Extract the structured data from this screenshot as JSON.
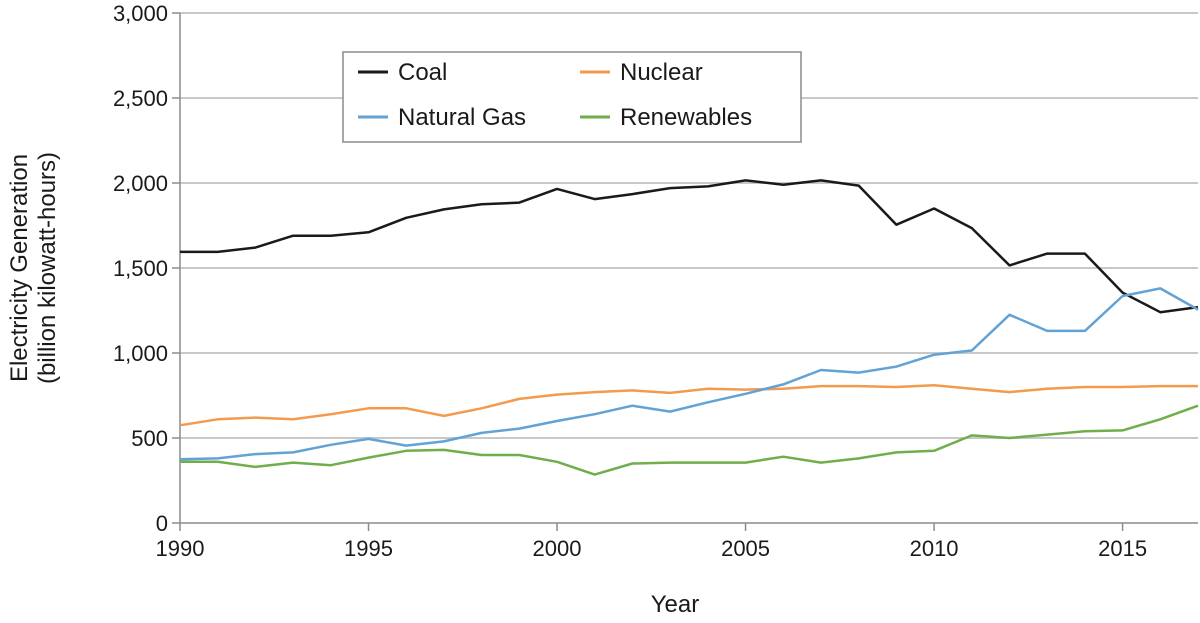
{
  "chart_data": {
    "type": "line",
    "title": "",
    "xlabel": "Year",
    "ylabel_lines": [
      "Electricity Generation",
      "(billion kilowatt-hours)"
    ],
    "xlim": [
      1990,
      2017
    ],
    "ylim": [
      0,
      3000
    ],
    "x_ticks": [
      1990,
      1995,
      2000,
      2005,
      2010,
      2015
    ],
    "x_tick_labels": [
      "1990",
      "1995",
      "2000",
      "2005",
      "2010",
      "2015"
    ],
    "y_ticks": [
      0,
      500,
      1000,
      1500,
      2000,
      2500,
      3000
    ],
    "y_tick_labels": [
      "0",
      "500",
      "1,000",
      "1,500",
      "2,000",
      "2,500",
      "3,000"
    ],
    "grid": "horizontal",
    "legend_position": "top-left inside",
    "x": [
      1990,
      1991,
      1992,
      1993,
      1994,
      1995,
      1996,
      1997,
      1998,
      1999,
      2000,
      2001,
      2002,
      2003,
      2004,
      2005,
      2006,
      2007,
      2008,
      2009,
      2010,
      2011,
      2012,
      2013,
      2014,
      2015,
      2016,
      2017
    ],
    "series": [
      {
        "name": "Coal",
        "color": "#1a1a1a",
        "values": [
          1595,
          1595,
          1620,
          1690,
          1690,
          1710,
          1795,
          1845,
          1875,
          1885,
          1965,
          1905,
          1935,
          1970,
          1980,
          2015,
          1990,
          2015,
          1985,
          1755,
          1850,
          1735,
          1515,
          1585,
          1585,
          1355,
          1240,
          1270
        ]
      },
      {
        "name": "Nuclear",
        "color": "#f39a4e",
        "values": [
          575,
          610,
          620,
          610,
          640,
          675,
          675,
          630,
          675,
          730,
          755,
          770,
          780,
          765,
          790,
          785,
          790,
          805,
          805,
          800,
          810,
          790,
          770,
          790,
          800,
          800,
          805,
          805
        ]
      },
      {
        "name": "Natural Gas",
        "color": "#62a2d4",
        "values": [
          375,
          380,
          405,
          415,
          460,
          495,
          455,
          480,
          530,
          555,
          600,
          640,
          690,
          655,
          710,
          760,
          815,
          900,
          885,
          920,
          990,
          1015,
          1225,
          1130,
          1130,
          1335,
          1380,
          1255
        ]
      },
      {
        "name": "Renewables",
        "color": "#6fae4b",
        "values": [
          360,
          360,
          330,
          355,
          340,
          385,
          425,
          430,
          400,
          400,
          360,
          285,
          350,
          355,
          355,
          355,
          390,
          355,
          380,
          415,
          425,
          515,
          500,
          520,
          540,
          545,
          610,
          690
        ]
      }
    ]
  }
}
